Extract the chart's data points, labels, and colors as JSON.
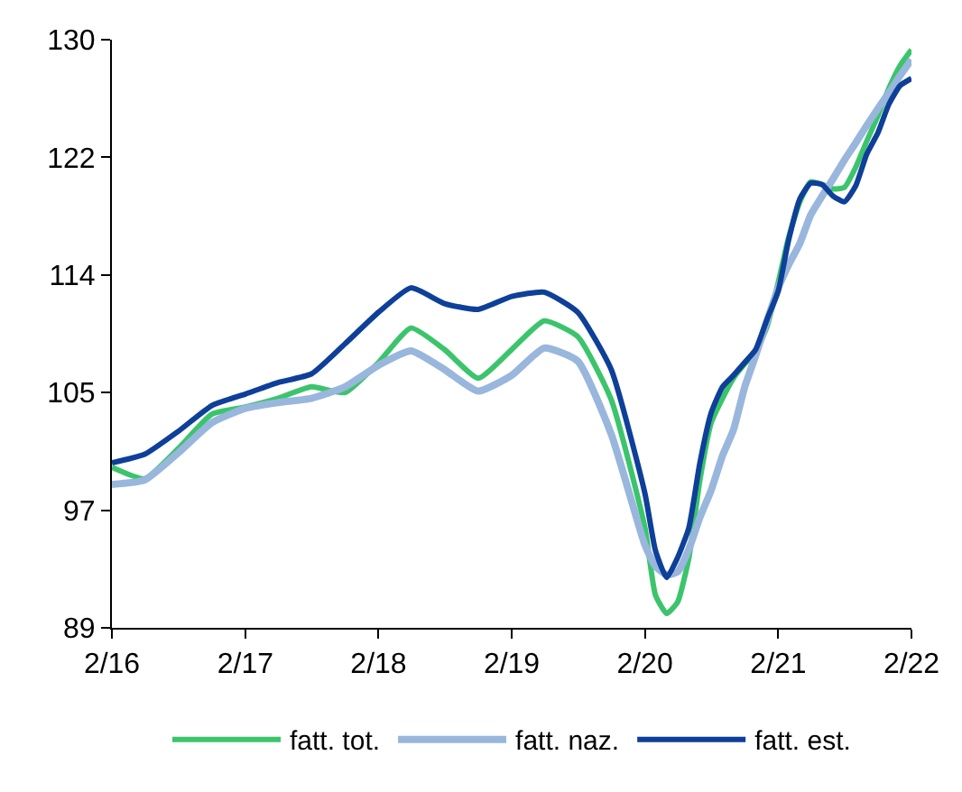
{
  "chart_data": {
    "type": "line",
    "x": [
      "2016-02",
      "2016-05",
      "2016-08",
      "2016-11",
      "2017-02",
      "2017-05",
      "2017-08",
      "2017-11",
      "2018-02",
      "2018-05",
      "2018-08",
      "2018-11",
      "2019-02",
      "2019-05",
      "2019-08",
      "2019-11",
      "2020-02",
      "2020-03",
      "2020-04",
      "2020-05",
      "2020-06",
      "2020-07",
      "2020-08",
      "2020-09",
      "2020-10",
      "2020-11",
      "2020-12",
      "2021-01",
      "2021-02",
      "2021-03",
      "2021-04",
      "2021-05",
      "2021-06",
      "2021-07",
      "2021-08",
      "2021-09",
      "2021-10",
      "2021-11",
      "2021-12",
      "2022-01",
      "2022-02"
    ],
    "series": [
      {
        "name": "fatt. tot.",
        "color": "#3cc46c",
        "values": [
          100.2,
          99.4,
          101.5,
          103.9,
          104.4,
          105.0,
          105.8,
          105.4,
          107.5,
          109.9,
          108.4,
          106.4,
          108.4,
          110.4,
          109.3,
          104.9,
          96.0,
          91.3,
          90.0,
          90.8,
          93.9,
          99.3,
          103.3,
          105.0,
          106.4,
          107.4,
          108.2,
          110.0,
          113.1,
          116.2,
          118.7,
          120.1,
          119.9,
          119.6,
          119.7,
          121.1,
          122.9,
          124.7,
          126.6,
          128.2,
          129.3
        ]
      },
      {
        "name": "fatt. naz.",
        "color": "#99b6dc",
        "values": [
          99.0,
          99.3,
          101.2,
          103.3,
          104.3,
          104.7,
          105.0,
          105.8,
          107.3,
          108.3,
          107.0,
          105.5,
          106.6,
          108.5,
          107.6,
          102.5,
          94.8,
          93.3,
          92.7,
          92.9,
          94.5,
          96.7,
          98.6,
          101.0,
          102.8,
          105.8,
          108.0,
          110.4,
          112.7,
          114.3,
          115.8,
          117.8,
          119.1,
          120.3,
          121.6,
          122.8,
          124.0,
          125.2,
          126.3,
          127.5,
          128.6
        ]
      },
      {
        "name": "fatt. est.",
        "color": "#0e3f99",
        "values": [
          100.5,
          101.1,
          102.7,
          104.5,
          105.3,
          106.1,
          106.7,
          108.8,
          111.0,
          112.7,
          111.6,
          111.2,
          112.1,
          112.4,
          111.0,
          107.0,
          98.4,
          94.4,
          92.5,
          93.9,
          96.0,
          100.5,
          104.0,
          105.8,
          106.6,
          107.5,
          108.4,
          110.5,
          112.5,
          116.0,
          118.9,
          120.0,
          119.9,
          119.1,
          118.7,
          119.8,
          122.0,
          123.5,
          125.5,
          126.8,
          127.3
        ]
      }
    ],
    "xlim": [
      "2016-02",
      "2022-02"
    ],
    "xticks": [
      {
        "value": "2016-02",
        "label": "2/16"
      },
      {
        "value": "2017-02",
        "label": "2/17"
      },
      {
        "value": "2018-02",
        "label": "2/18"
      },
      {
        "value": "2019-02",
        "label": "2/19"
      },
      {
        "value": "2020-02",
        "label": "2/20"
      },
      {
        "value": "2021-02",
        "label": "2/21"
      },
      {
        "value": "2022-02",
        "label": "2/22"
      }
    ],
    "ylim": [
      89,
      130
    ],
    "yticks": [
      {
        "value": 89,
        "label": "89"
      },
      {
        "value": 97.2,
        "label": "97"
      },
      {
        "value": 105.4,
        "label": "105"
      },
      {
        "value": 113.6,
        "label": "114"
      },
      {
        "value": 121.8,
        "label": "122"
      },
      {
        "value": 130,
        "label": "130"
      }
    ],
    "legend": "bottom",
    "marker": "none",
    "line_style": "solid"
  }
}
